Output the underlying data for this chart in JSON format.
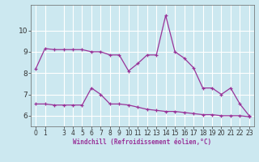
{
  "xlabel": "Windchill (Refroidissement éolien,°C)",
  "line1_x": [
    0,
    1,
    2,
    3,
    4,
    5,
    6,
    7,
    8,
    9,
    10,
    11,
    12,
    13,
    14,
    15,
    16,
    17,
    18,
    19,
    20,
    21,
    22,
    23
  ],
  "line1_y": [
    8.2,
    9.15,
    9.1,
    9.1,
    9.1,
    9.1,
    9.0,
    9.0,
    8.85,
    8.85,
    8.1,
    8.45,
    8.85,
    8.85,
    10.7,
    9.0,
    8.7,
    8.25,
    7.3,
    7.3,
    7.0,
    7.3,
    6.55,
    6.0
  ],
  "line2_x": [
    0,
    1,
    2,
    3,
    4,
    5,
    6,
    7,
    8,
    9,
    10,
    11,
    12,
    13,
    14,
    15,
    16,
    17,
    18,
    19,
    20,
    21,
    22,
    23
  ],
  "line2_y": [
    6.55,
    6.55,
    6.5,
    6.5,
    6.5,
    6.5,
    7.3,
    7.0,
    6.55,
    6.55,
    6.5,
    6.4,
    6.3,
    6.25,
    6.2,
    6.2,
    6.15,
    6.1,
    6.05,
    6.05,
    6.0,
    6.0,
    6.0,
    5.95
  ],
  "line_color": "#993399",
  "bg_color": "#cce8f0",
  "grid_color": "#b0d8e8",
  "ylim": [
    5.5,
    11.2
  ],
  "yticks": [
    6,
    7,
    8,
    9,
    10
  ],
  "xticks": [
    0,
    1,
    3,
    4,
    5,
    6,
    7,
    8,
    9,
    10,
    11,
    12,
    13,
    14,
    15,
    16,
    17,
    18,
    19,
    20,
    21,
    22,
    23
  ],
  "xlim": [
    -0.5,
    23.5
  ],
  "tick_fontsize": 5.5,
  "label_fontsize": 5.5
}
